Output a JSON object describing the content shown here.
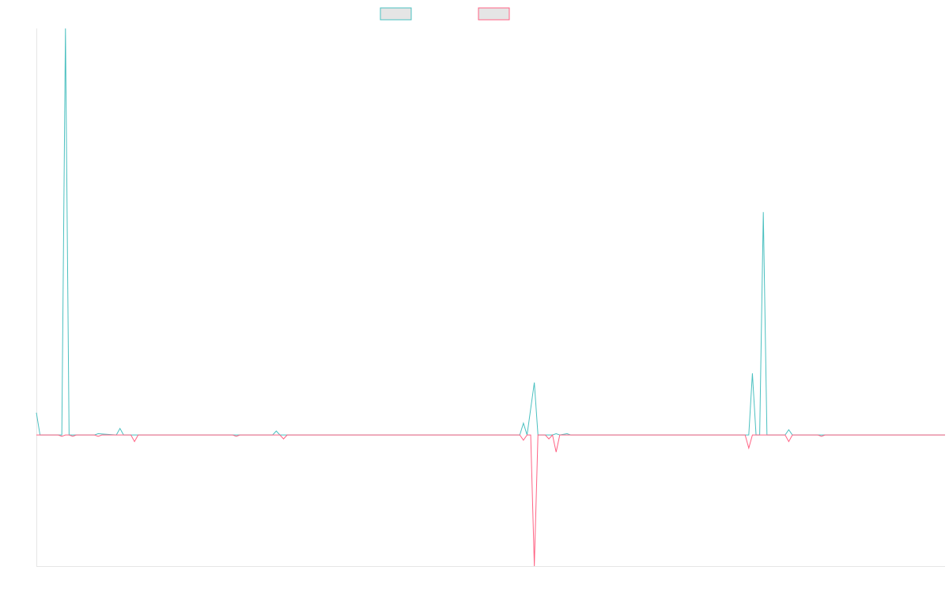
{
  "chart_data": {
    "type": "line",
    "title": "",
    "xlabel": "",
    "ylabel": "",
    "legend_position": "top-center",
    "grid": false,
    "ylim": [
      -100,
      310
    ],
    "series": [
      {
        "name": "",
        "color": "#4bc0c0",
        "fill": "#e5e5e5",
        "points": [
          [
            0,
            17
          ],
          [
            1,
            0
          ],
          [
            7,
            0
          ],
          [
            8,
            310
          ],
          [
            9,
            0
          ],
          [
            16,
            0
          ],
          [
            17,
            1
          ],
          [
            22,
            0
          ],
          [
            23,
            5
          ],
          [
            24,
            0
          ],
          [
            55,
            0
          ],
          [
            57,
            0
          ],
          [
            58,
            0
          ],
          [
            65,
            0
          ],
          [
            66,
            3
          ],
          [
            67,
            0
          ],
          [
            133,
            0
          ],
          [
            134,
            9
          ],
          [
            135,
            0
          ],
          [
            137,
            40
          ],
          [
            138,
            0
          ],
          [
            142,
            0
          ],
          [
            143,
            1
          ],
          [
            144,
            0
          ],
          [
            146,
            1
          ],
          [
            147,
            0
          ],
          [
            196,
            0
          ],
          [
            197,
            47
          ],
          [
            198,
            0
          ],
          [
            199,
            0
          ],
          [
            200,
            170
          ],
          [
            201,
            0
          ],
          [
            206,
            0
          ],
          [
            207,
            4
          ],
          [
            208,
            0
          ],
          [
            215,
            0
          ],
          [
            216,
            0
          ],
          [
            217,
            0
          ],
          [
            250,
            0
          ]
        ]
      },
      {
        "name": "",
        "color": "#ff6384",
        "fill": "#e5e5e5",
        "points": [
          [
            0,
            0
          ],
          [
            6,
            0
          ],
          [
            7,
            -1
          ],
          [
            8,
            0
          ],
          [
            9,
            0
          ],
          [
            10,
            -1
          ],
          [
            11,
            0
          ],
          [
            16,
            0
          ],
          [
            17,
            -1
          ],
          [
            18,
            0
          ],
          [
            26,
            0
          ],
          [
            27,
            -5
          ],
          [
            28,
            0
          ],
          [
            54,
            0
          ],
          [
            55,
            -1
          ],
          [
            56,
            0
          ],
          [
            67,
            0
          ],
          [
            68,
            -3
          ],
          [
            69,
            0
          ],
          [
            70,
            0
          ],
          [
            133,
            0
          ],
          [
            134,
            -4
          ],
          [
            135,
            0
          ],
          [
            136,
            0
          ],
          [
            137,
            -100
          ],
          [
            138,
            0
          ],
          [
            140,
            0
          ],
          [
            141,
            -3
          ],
          [
            142,
            0
          ],
          [
            143,
            -13
          ],
          [
            144,
            0
          ],
          [
            195,
            0
          ],
          [
            196,
            -10
          ],
          [
            197,
            0
          ],
          [
            206,
            0
          ],
          [
            207,
            -5
          ],
          [
            208,
            0
          ],
          [
            215,
            0
          ],
          [
            216,
            -1
          ],
          [
            217,
            0
          ],
          [
            250,
            0
          ]
        ]
      }
    ]
  }
}
